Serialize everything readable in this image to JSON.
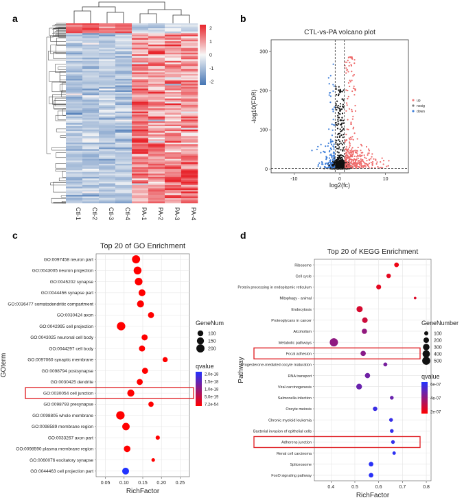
{
  "panel_labels": {
    "a": "a",
    "b": "b",
    "c": "c",
    "d": "d"
  },
  "chart_data": [
    {
      "id": "a",
      "type": "heatmap",
      "columns": [
        "Ctl-1",
        "Ctl-2",
        "Ctl-3",
        "Ctl-4",
        "PA-1",
        "PA-2",
        "PA-3",
        "PA-4"
      ],
      "color_scale": {
        "ticks": [
          "2",
          "1",
          "0",
          "-1",
          "-2"
        ],
        "range": [
          -2,
          2
        ],
        "low": "#4575b4",
        "mid": "#f7f7f7",
        "high": "#e8242b"
      }
    },
    {
      "id": "b",
      "type": "scatter",
      "title": "CTL-vs-PA volcano plot",
      "xlabel": "log2(fc)",
      "ylabel": "-log10(FDR)",
      "xlim": [
        -15,
        15
      ],
      "ylim": [
        -10,
        330
      ],
      "xticks": [
        "-10",
        "0",
        "10"
      ],
      "yticks": [
        "0",
        "100",
        "200",
        "300"
      ],
      "legend": [
        {
          "label": "up",
          "color": "#f08080"
        },
        {
          "label": "nosig",
          "color": "#7a7a7a"
        },
        {
          "label": "down",
          "color": "#3f7fd9"
        }
      ],
      "thresholds": {
        "x": [
          -1,
          1
        ],
        "y": 1.3
      },
      "colors": {
        "up": "#ee6b6b",
        "nosig": "#111111",
        "down": "#3f7fd9"
      }
    },
    {
      "id": "c",
      "type": "scatter",
      "title": "Top 20 of GO Enrichment",
      "xlabel": "RichFactor",
      "ylabel": "GOterm",
      "xlim": [
        0.025,
        0.275
      ],
      "xticks": [
        "0.05",
        "0.10",
        "0.15",
        "0.20",
        "0.25"
      ],
      "size_legend_title": "GeneNum",
      "size_legend": [
        "100",
        "150",
        "200"
      ],
      "color_legend_title": "qvalue",
      "color_legend": [
        "2.0e-18",
        "1.5e-18",
        "1.0e-18",
        "5.0e-19",
        "7.2e-54"
      ],
      "highlight": "GO:0030054 cell junction",
      "points": [
        {
          "label": "GO:0097458 neuron part",
          "x": 0.132,
          "size": 200,
          "q": 0.0
        },
        {
          "label": "GO:0043005 neuron projection",
          "x": 0.136,
          "size": 185,
          "q": 0.0
        },
        {
          "label": "GO:0045202 synapse",
          "x": 0.139,
          "size": 175,
          "q": 0.0
        },
        {
          "label": "GO:0044456 synapse part",
          "x": 0.148,
          "size": 140,
          "q": 0.0
        },
        {
          "label": "GO:0036477 somatodendritic compartment",
          "x": 0.144,
          "size": 145,
          "q": 0.0
        },
        {
          "label": "GO:0030424 axon",
          "x": 0.172,
          "size": 110,
          "q": 0.0
        },
        {
          "label": "GO:0042995 cell projection",
          "x": 0.092,
          "size": 215,
          "q": 0.0
        },
        {
          "label": "GO:0043025 neuronal cell body",
          "x": 0.155,
          "size": 110,
          "q": 0.0
        },
        {
          "label": "GO:0044297 cell body",
          "x": 0.148,
          "size": 110,
          "q": 0.0
        },
        {
          "label": "GO:0097060 synaptic membrane",
          "x": 0.21,
          "size": 80,
          "q": 0.0
        },
        {
          "label": "GO:0098794 postsynapse",
          "x": 0.156,
          "size": 110,
          "q": 0.0
        },
        {
          "label": "GO:0030425 dendrite",
          "x": 0.142,
          "size": 110,
          "q": 0.0
        },
        {
          "label": "GO:0030054 cell junction",
          "x": 0.118,
          "size": 150,
          "q": 0.0
        },
        {
          "label": "GO:0098793 presynapse",
          "x": 0.172,
          "size": 85,
          "q": 0.0
        },
        {
          "label": "GO:0098805 whole membrane",
          "x": 0.09,
          "size": 215,
          "q": 0.0
        },
        {
          "label": "GO:0098589 membrane region",
          "x": 0.105,
          "size": 165,
          "q": 0.0
        },
        {
          "label": "GO:0033267 axon part",
          "x": 0.19,
          "size": 60,
          "q": 0.0
        },
        {
          "label": "GO:0098590 plasma membrane region",
          "x": 0.108,
          "size": 130,
          "q": 0.0
        },
        {
          "label": "GO:0060076 excitatory synapse",
          "x": 0.178,
          "size": 50,
          "q": 0.0
        },
        {
          "label": "GO:0044463 cell projection part",
          "x": 0.104,
          "size": 140,
          "q": 2e-18
        }
      ]
    },
    {
      "id": "d",
      "type": "scatter",
      "title": "Top 20 of KEGG Enrichment",
      "xlabel": "RichFactor",
      "ylabel": "Pathway",
      "xlim": [
        0.33,
        0.82
      ],
      "xticks": [
        "0.4",
        "0.5",
        "0.6",
        "0.7",
        "0.8"
      ],
      "size_legend_title": "GeneNumber",
      "size_legend": [
        "100",
        "200",
        "300",
        "400",
        "500"
      ],
      "color_legend_title": "qvalue",
      "color_legend": [
        "6e-07",
        "4e-07",
        "2e-07"
      ],
      "highlight": [
        "Focal adhesion",
        "Adherens junction"
      ],
      "points": [
        {
          "label": "Ribosome",
          "x": 0.675,
          "size": 130,
          "q": 5e-08
        },
        {
          "label": "Cell cycle",
          "x": 0.642,
          "size": 120,
          "q": 8e-08
        },
        {
          "label": "Protein processing in endoplasmic reticulum",
          "x": 0.6,
          "size": 150,
          "q": 8e-08
        },
        {
          "label": "Mitophagy - animal",
          "x": 0.753,
          "size": 40,
          "q": 1e-07
        },
        {
          "label": "Endocytosis",
          "x": 0.52,
          "size": 260,
          "q": 1.2e-07
        },
        {
          "label": "Proteoglycans in cancer",
          "x": 0.542,
          "size": 200,
          "q": 1.5e-07
        },
        {
          "label": "Alcoholism",
          "x": 0.54,
          "size": 175,
          "q": 3.2e-07
        },
        {
          "label": "Metabolic pathways",
          "x": 0.412,
          "size": 520,
          "q": 3.3e-07
        },
        {
          "label": "Focal adhesion",
          "x": 0.535,
          "size": 180,
          "q": 3.5e-07
        },
        {
          "label": "Progesterone-mediated oocyte maturation",
          "x": 0.628,
          "size": 90,
          "q": 4e-07
        },
        {
          "label": "RNA transport",
          "x": 0.553,
          "size": 175,
          "q": 4.2e-07
        },
        {
          "label": "Viral carcinogenesis",
          "x": 0.518,
          "size": 220,
          "q": 4.4e-07
        },
        {
          "label": "Salmonella infection",
          "x": 0.655,
          "size": 80,
          "q": 4.4e-07
        },
        {
          "label": "Oocyte meiosis",
          "x": 0.585,
          "size": 120,
          "q": 5.8e-07
        },
        {
          "label": "Chronic myeloid leukemia",
          "x": 0.652,
          "size": 80,
          "q": 5.9e-07
        },
        {
          "label": "Bacterial invasion of epithelial cells",
          "x": 0.655,
          "size": 80,
          "q": 6e-07
        },
        {
          "label": "Adherens junction",
          "x": 0.66,
          "size": 80,
          "q": 6e-07
        },
        {
          "label": "Renal cell carcinoma",
          "x": 0.665,
          "size": 65,
          "q": 6.2e-07
        },
        {
          "label": "Spliceosome",
          "x": 0.568,
          "size": 130,
          "q": 6.3e-07
        },
        {
          "label": "FoxO signaling pathway",
          "x": 0.568,
          "size": 130,
          "q": 6.3e-07
        }
      ]
    }
  ]
}
